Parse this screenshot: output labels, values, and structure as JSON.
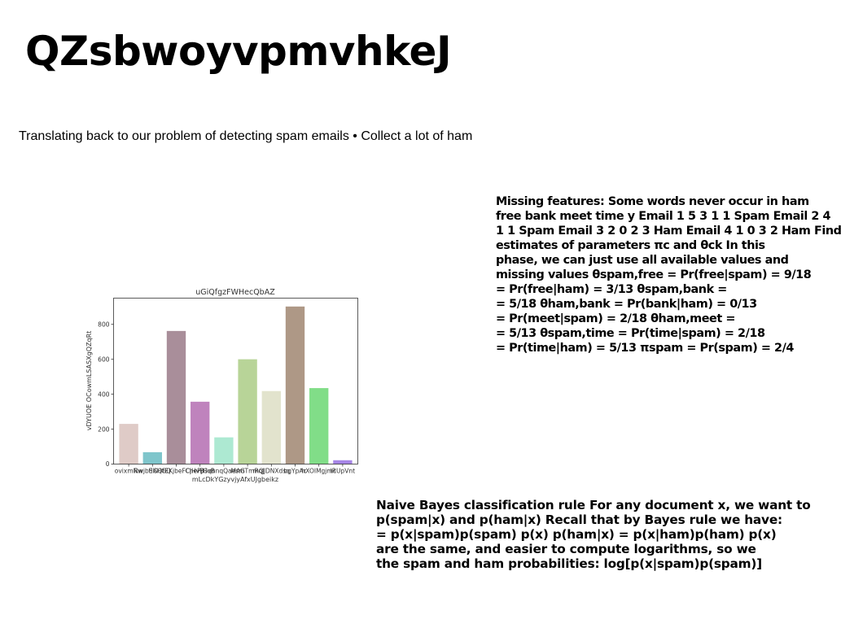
{
  "slide": {
    "title": "QZsbwoyvpmvhkeJ",
    "subtitle": "Translating back to our problem of detecting spam emails • Collect a lot of ham"
  },
  "text_blocks": {
    "missing_features": [
      "Missing features: Some words never occur in ham",
      "free bank meet time y Email 1 5 3 1 1 Spam Email 2 4",
      "1 1 Spam Email 3 2 0 2 3 Ham Email 4 1 0 3 2 Ham Find",
      "estimates of parameters πc and θck In this",
      "phase, we can just use all available values and",
      "missing values θspam,free = Pr(free|spam) = 9/18",
      "= Pr(free|ham) = 3/13 θspam,bank =",
      "= 5/18 θham,bank = Pr(bank|ham) = 0/13",
      "= Pr(meet|spam) = 2/18 θham,meet =",
      "= 5/13 θspam,time = Pr(time|spam) = 2/18",
      "= Pr(time|ham) = 5/13 πspam = Pr(spam) = 2/4"
    ],
    "naive_bayes": [
      "Naive Bayes classification rule For any document x, we want to",
      "p(spam|x) and p(ham|x) Recall that by Bayes rule we have:",
      "= p(x|spam)p(spam) p(x) p(ham|x) = p(x|ham)p(ham) p(x)",
      "are the same, and easier to compute logarithms, so we",
      "the spam and ham probabilities: log[p(x|spam)p(spam)]"
    ]
  },
  "chart_data": {
    "type": "bar",
    "title": "uGiQfgzFWHecQbAZ",
    "xlabel": "mLcDkYGzyvjyAfxUJgbeikz",
    "ylabel": "vDYUOE OCowmLSASXgQZqRt",
    "categories": [
      "ovixmNw",
      "RwjbEXHGQ",
      "tIGQtEKjbeFCjHvB",
      "ChePjHvB",
      "GqhnqQaesm",
      "MAGTmRqJ",
      "mQJDNXdsq",
      "bgYpAc",
      "hXOIMgjmc",
      "lRUpVnt"
    ],
    "values": [
      230,
      68,
      762,
      357,
      153,
      600,
      418,
      902,
      435,
      22
    ],
    "colors": [
      "#dfcbc7",
      "#7fc5cb",
      "#a98e9a",
      "#bf83bd",
      "#ade9d2",
      "#b8d498",
      "#e2e3cd",
      "#ae9886",
      "#81dd88",
      "#a685e6"
    ],
    "ylim": [
      0,
      950
    ],
    "yticks": [
      0,
      200,
      400,
      600,
      800
    ],
    "grid": false,
    "legend": "none"
  }
}
